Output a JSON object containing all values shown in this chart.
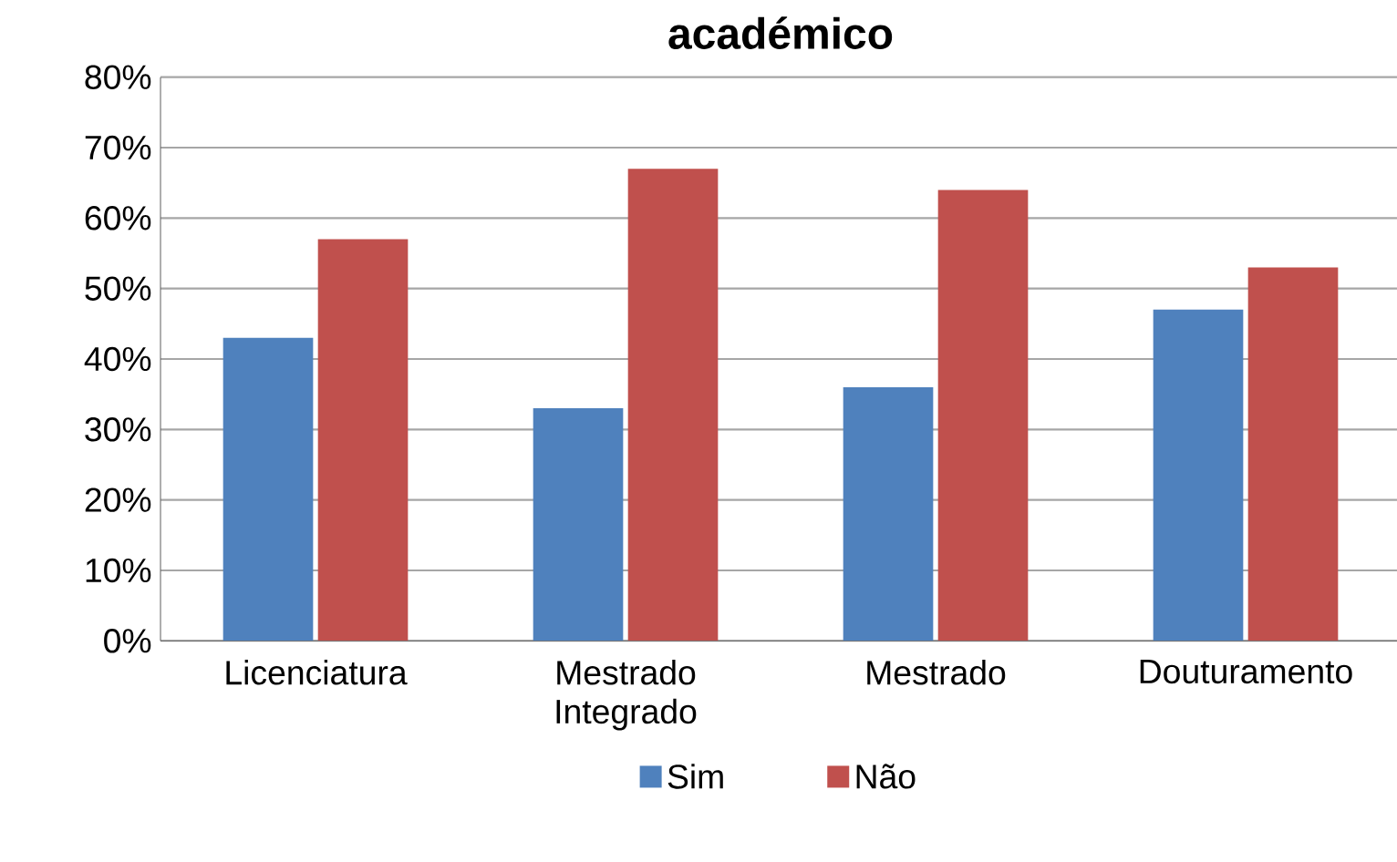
{
  "chart_data": {
    "type": "bar",
    "title": "académico",
    "categories": [
      "Licenciatura",
      "Mestrado\nIntegrado",
      "Mestrado",
      "Douturamento"
    ],
    "series": [
      {
        "name": "Sim",
        "color": "#4f81bd",
        "values": [
          43,
          33,
          36,
          47
        ]
      },
      {
        "name": "Não",
        "color": "#c0504d",
        "values": [
          57,
          67,
          64,
          53
        ]
      }
    ],
    "ylim": [
      0,
      80
    ],
    "yticks": [
      {
        "value": 0,
        "label": "0%"
      },
      {
        "value": 10,
        "label": "10%"
      },
      {
        "value": 20,
        "label": "20%"
      },
      {
        "value": 30,
        "label": "30%"
      },
      {
        "value": 40,
        "label": "40%"
      },
      {
        "value": 50,
        "label": "50%"
      },
      {
        "value": 60,
        "label": "60%"
      },
      {
        "value": 70,
        "label": "70%"
      },
      {
        "value": 80,
        "label": "80%"
      }
    ],
    "grid": "y",
    "legend": "bottom"
  }
}
